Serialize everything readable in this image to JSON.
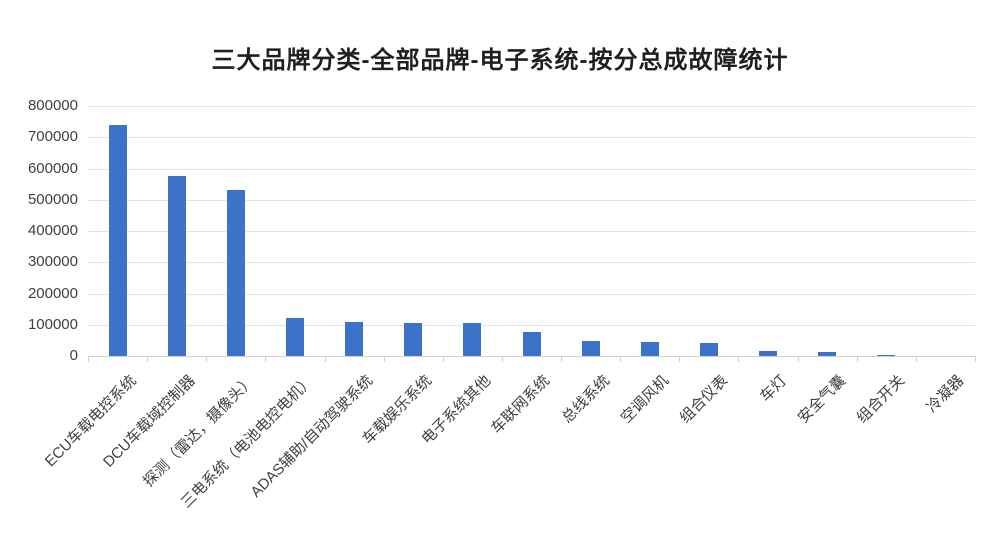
{
  "chart_data": {
    "type": "bar",
    "title": "三大品牌分类-全部品牌-电子系统-按分总成故障统计",
    "categories": [
      "ECU车载电控系统",
      "DCU车载域控制器",
      "探测（雷达，摄像头）",
      "三电系统（电池电控电机）",
      "ADAS辅助/自动驾驶系统",
      "车载娱乐系统",
      "电子系统其他",
      "车联网系统",
      "总线系统",
      "空调风机",
      "组合仪表",
      "车灯",
      "安全气囊",
      "组合开关",
      "冷凝器"
    ],
    "values": [
      740000,
      575000,
      530000,
      123000,
      109000,
      107000,
      105000,
      77000,
      48000,
      46000,
      41000,
      17000,
      13000,
      2500,
      1500
    ],
    "xlabel": "",
    "ylabel": "",
    "ylim": [
      0,
      800000
    ],
    "yticks": [
      0,
      100000,
      200000,
      300000,
      400000,
      500000,
      600000,
      700000,
      800000
    ],
    "grid": true,
    "legend_position": "none",
    "bar_color": "#3c72c8",
    "grid_color": "#e4e4e4",
    "axis_color": "#cfcfcf",
    "label_color": "#404040",
    "title_color": "#1f1f1f"
  }
}
